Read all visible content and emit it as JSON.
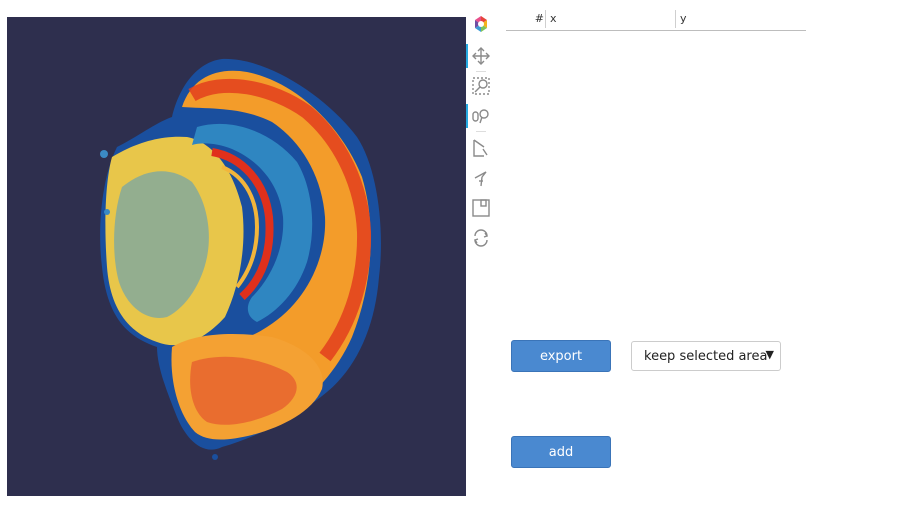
{
  "plot": {
    "background_color": "#2e2f4e",
    "colormap": [
      "#0d3a8f",
      "#1f77b4",
      "#f2c94c",
      "#f7941d",
      "#e63b1e"
    ],
    "content": "heatmap image"
  },
  "toolbar": {
    "tools": [
      {
        "name": "bokeh-logo-icon",
        "active": false
      },
      {
        "name": "pan-icon",
        "active": true
      },
      {
        "name": "box-zoom-icon",
        "active": false
      },
      {
        "name": "wheel-zoom-icon",
        "active": true
      },
      {
        "name": "box-select-icon",
        "active": false
      },
      {
        "name": "lasso-select-icon",
        "active": false
      },
      {
        "name": "save-icon",
        "active": false
      },
      {
        "name": "reset-icon",
        "active": false
      }
    ]
  },
  "table": {
    "columns": [
      "#",
      "x",
      "y"
    ]
  },
  "controls": {
    "export_label": "export",
    "add_label": "add",
    "select_value": "keep selected area",
    "select_caret": "▼"
  }
}
